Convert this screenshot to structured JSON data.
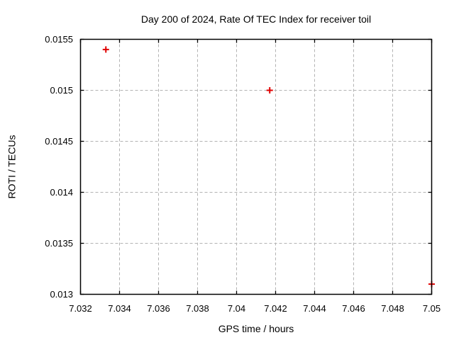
{
  "window": {
    "background": "#ffffff"
  },
  "chart_data": {
    "type": "scatter",
    "title": "Day 200 of 2024, Rate Of TEC Index for receiver toil",
    "xlabel": "GPS time / hours",
    "ylabel": "ROTI / TECUs",
    "xlim": [
      7.032,
      7.05
    ],
    "ylim": [
      0.013,
      0.0155
    ],
    "xticks": [
      7.032,
      7.034,
      7.036,
      7.038,
      7.04,
      7.042,
      7.044,
      7.046,
      7.048,
      7.05
    ],
    "xtick_labels": [
      "7.032",
      "7.034",
      "7.036",
      "7.038",
      "7.04",
      "7.042",
      "7.044",
      "7.046",
      "7.048",
      "7.05"
    ],
    "yticks": [
      0.013,
      0.0135,
      0.014,
      0.0145,
      0.015,
      0.0155
    ],
    "ytick_labels": [
      "0.013",
      "0.0135",
      "0.014",
      "0.0145",
      "0.015",
      "0.0155"
    ],
    "grid": true,
    "legend_position": "none",
    "marker": "plus",
    "series": [
      {
        "name": "ROTI",
        "color": "#e00000",
        "x": [
          7.0333,
          7.0417,
          7.05
        ],
        "y": [
          0.0154,
          0.015,
          0.0131
        ]
      }
    ]
  },
  "colors": {
    "background": "#ffffff",
    "border": "#000000",
    "grid": "#b3b3b3",
    "marker": "#e00000",
    "text": "#000000"
  }
}
